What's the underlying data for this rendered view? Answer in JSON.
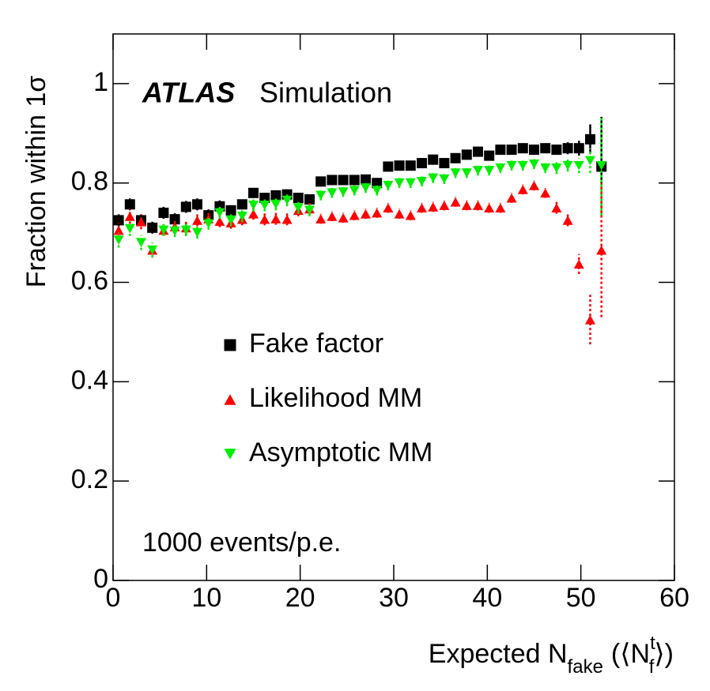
{
  "chart_data": {
    "type": "scatter",
    "title": "ATLAS",
    "subtitle": "Simulation",
    "annotation": "1000 events/p.e.",
    "ylabel": "Fraction within 1σ",
    "xlabel": {
      "main": "Expected N",
      "sub": "fake",
      "paren": "(⟨N",
      "sup": "t",
      "sub2": "f",
      "close": "⟩)"
    },
    "xlim": [
      0,
      60
    ],
    "xticks": [
      0,
      10,
      20,
      30,
      40,
      50,
      60
    ],
    "ylim": [
      0,
      1.1
    ],
    "yticks": [
      0,
      0.2,
      0.4,
      0.6,
      0.8,
      1
    ],
    "x": [
      0.6,
      1.8,
      3.0,
      4.2,
      5.4,
      6.6,
      7.8,
      9.0,
      10.2,
      11.4,
      12.6,
      13.8,
      15.0,
      16.2,
      17.4,
      18.6,
      19.8,
      21.0,
      22.2,
      23.4,
      24.6,
      25.8,
      27.0,
      28.2,
      29.4,
      30.6,
      31.8,
      33.0,
      34.2,
      35.4,
      36.6,
      37.8,
      39.0,
      40.2,
      41.4,
      42.6,
      43.8,
      45.0,
      46.2,
      47.4,
      48.6,
      49.8,
      51.0,
      52.2
    ],
    "series": [
      {
        "name": "Fake factor",
        "color": "#000000",
        "marker": "square",
        "line": "solid",
        "values": [
          0.725,
          0.757,
          0.725,
          0.71,
          0.74,
          0.727,
          0.752,
          0.757,
          0.735,
          0.753,
          0.745,
          0.757,
          0.78,
          0.77,
          0.775,
          0.777,
          0.77,
          0.767,
          0.803,
          0.806,
          0.806,
          0.806,
          0.807,
          0.8,
          0.833,
          0.835,
          0.835,
          0.84,
          0.847,
          0.84,
          0.85,
          0.857,
          0.863,
          0.855,
          0.867,
          0.867,
          0.87,
          0.867,
          0.87,
          0.867,
          0.87,
          0.87,
          0.888,
          0.833
        ],
        "errors": [
          0.012,
          0.012,
          0.012,
          0.012,
          0.012,
          0.012,
          0.012,
          0.012,
          0.012,
          0.012,
          0.01,
          0.01,
          0.01,
          0.01,
          0.01,
          0.01,
          0.01,
          0.01,
          0.01,
          0.01,
          0.01,
          0.01,
          0.01,
          0.01,
          0.01,
          0.01,
          0.01,
          0.01,
          0.01,
          0.01,
          0.01,
          0.01,
          0.01,
          0.01,
          0.01,
          0.01,
          0.01,
          0.01,
          0.01,
          0.01,
          0.012,
          0.015,
          0.03,
          0.1
        ]
      },
      {
        "name": "Likelihood MM",
        "color": "#ff0000",
        "marker": "triangle-up",
        "line": "dotted",
        "values": [
          0.705,
          0.733,
          0.722,
          0.665,
          0.705,
          0.712,
          0.71,
          0.725,
          0.728,
          0.723,
          0.72,
          0.727,
          0.738,
          0.727,
          0.728,
          0.727,
          0.745,
          0.748,
          0.728,
          0.733,
          0.73,
          0.735,
          0.738,
          0.74,
          0.75,
          0.738,
          0.735,
          0.75,
          0.752,
          0.755,
          0.762,
          0.755,
          0.755,
          0.75,
          0.75,
          0.77,
          0.787,
          0.795,
          0.78,
          0.75,
          0.725,
          0.637,
          0.525,
          0.665
        ],
        "errors": [
          0.015,
          0.015,
          0.015,
          0.015,
          0.012,
          0.012,
          0.012,
          0.012,
          0.012,
          0.012,
          0.012,
          0.012,
          0.012,
          0.012,
          0.012,
          0.012,
          0.012,
          0.012,
          0.01,
          0.01,
          0.01,
          0.01,
          0.01,
          0.01,
          0.01,
          0.01,
          0.01,
          0.01,
          0.01,
          0.01,
          0.01,
          0.01,
          0.01,
          0.01,
          0.01,
          0.01,
          0.01,
          0.01,
          0.01,
          0.012,
          0.012,
          0.02,
          0.05,
          0.135
        ]
      },
      {
        "name": "Asymptotic MM",
        "color": "#00ee00",
        "marker": "triangle-down",
        "line": "dotted",
        "values": [
          0.685,
          0.708,
          0.68,
          0.665,
          0.705,
          0.703,
          0.705,
          0.7,
          0.718,
          0.74,
          0.725,
          0.733,
          0.755,
          0.755,
          0.757,
          0.765,
          0.75,
          0.745,
          0.775,
          0.78,
          0.782,
          0.785,
          0.79,
          0.785,
          0.795,
          0.8,
          0.8,
          0.803,
          0.81,
          0.808,
          0.82,
          0.82,
          0.825,
          0.825,
          0.83,
          0.835,
          0.835,
          0.838,
          0.83,
          0.83,
          0.835,
          0.835,
          0.845,
          0.835
        ],
        "errors": [
          0.015,
          0.015,
          0.015,
          0.015,
          0.012,
          0.012,
          0.012,
          0.012,
          0.012,
          0.012,
          0.012,
          0.012,
          0.012,
          0.012,
          0.012,
          0.012,
          0.012,
          0.012,
          0.01,
          0.01,
          0.01,
          0.01,
          0.01,
          0.01,
          0.01,
          0.01,
          0.01,
          0.01,
          0.01,
          0.01,
          0.01,
          0.01,
          0.01,
          0.01,
          0.01,
          0.01,
          0.01,
          0.01,
          0.01,
          0.012,
          0.012,
          0.015,
          0.025,
          0.1
        ]
      }
    ]
  }
}
